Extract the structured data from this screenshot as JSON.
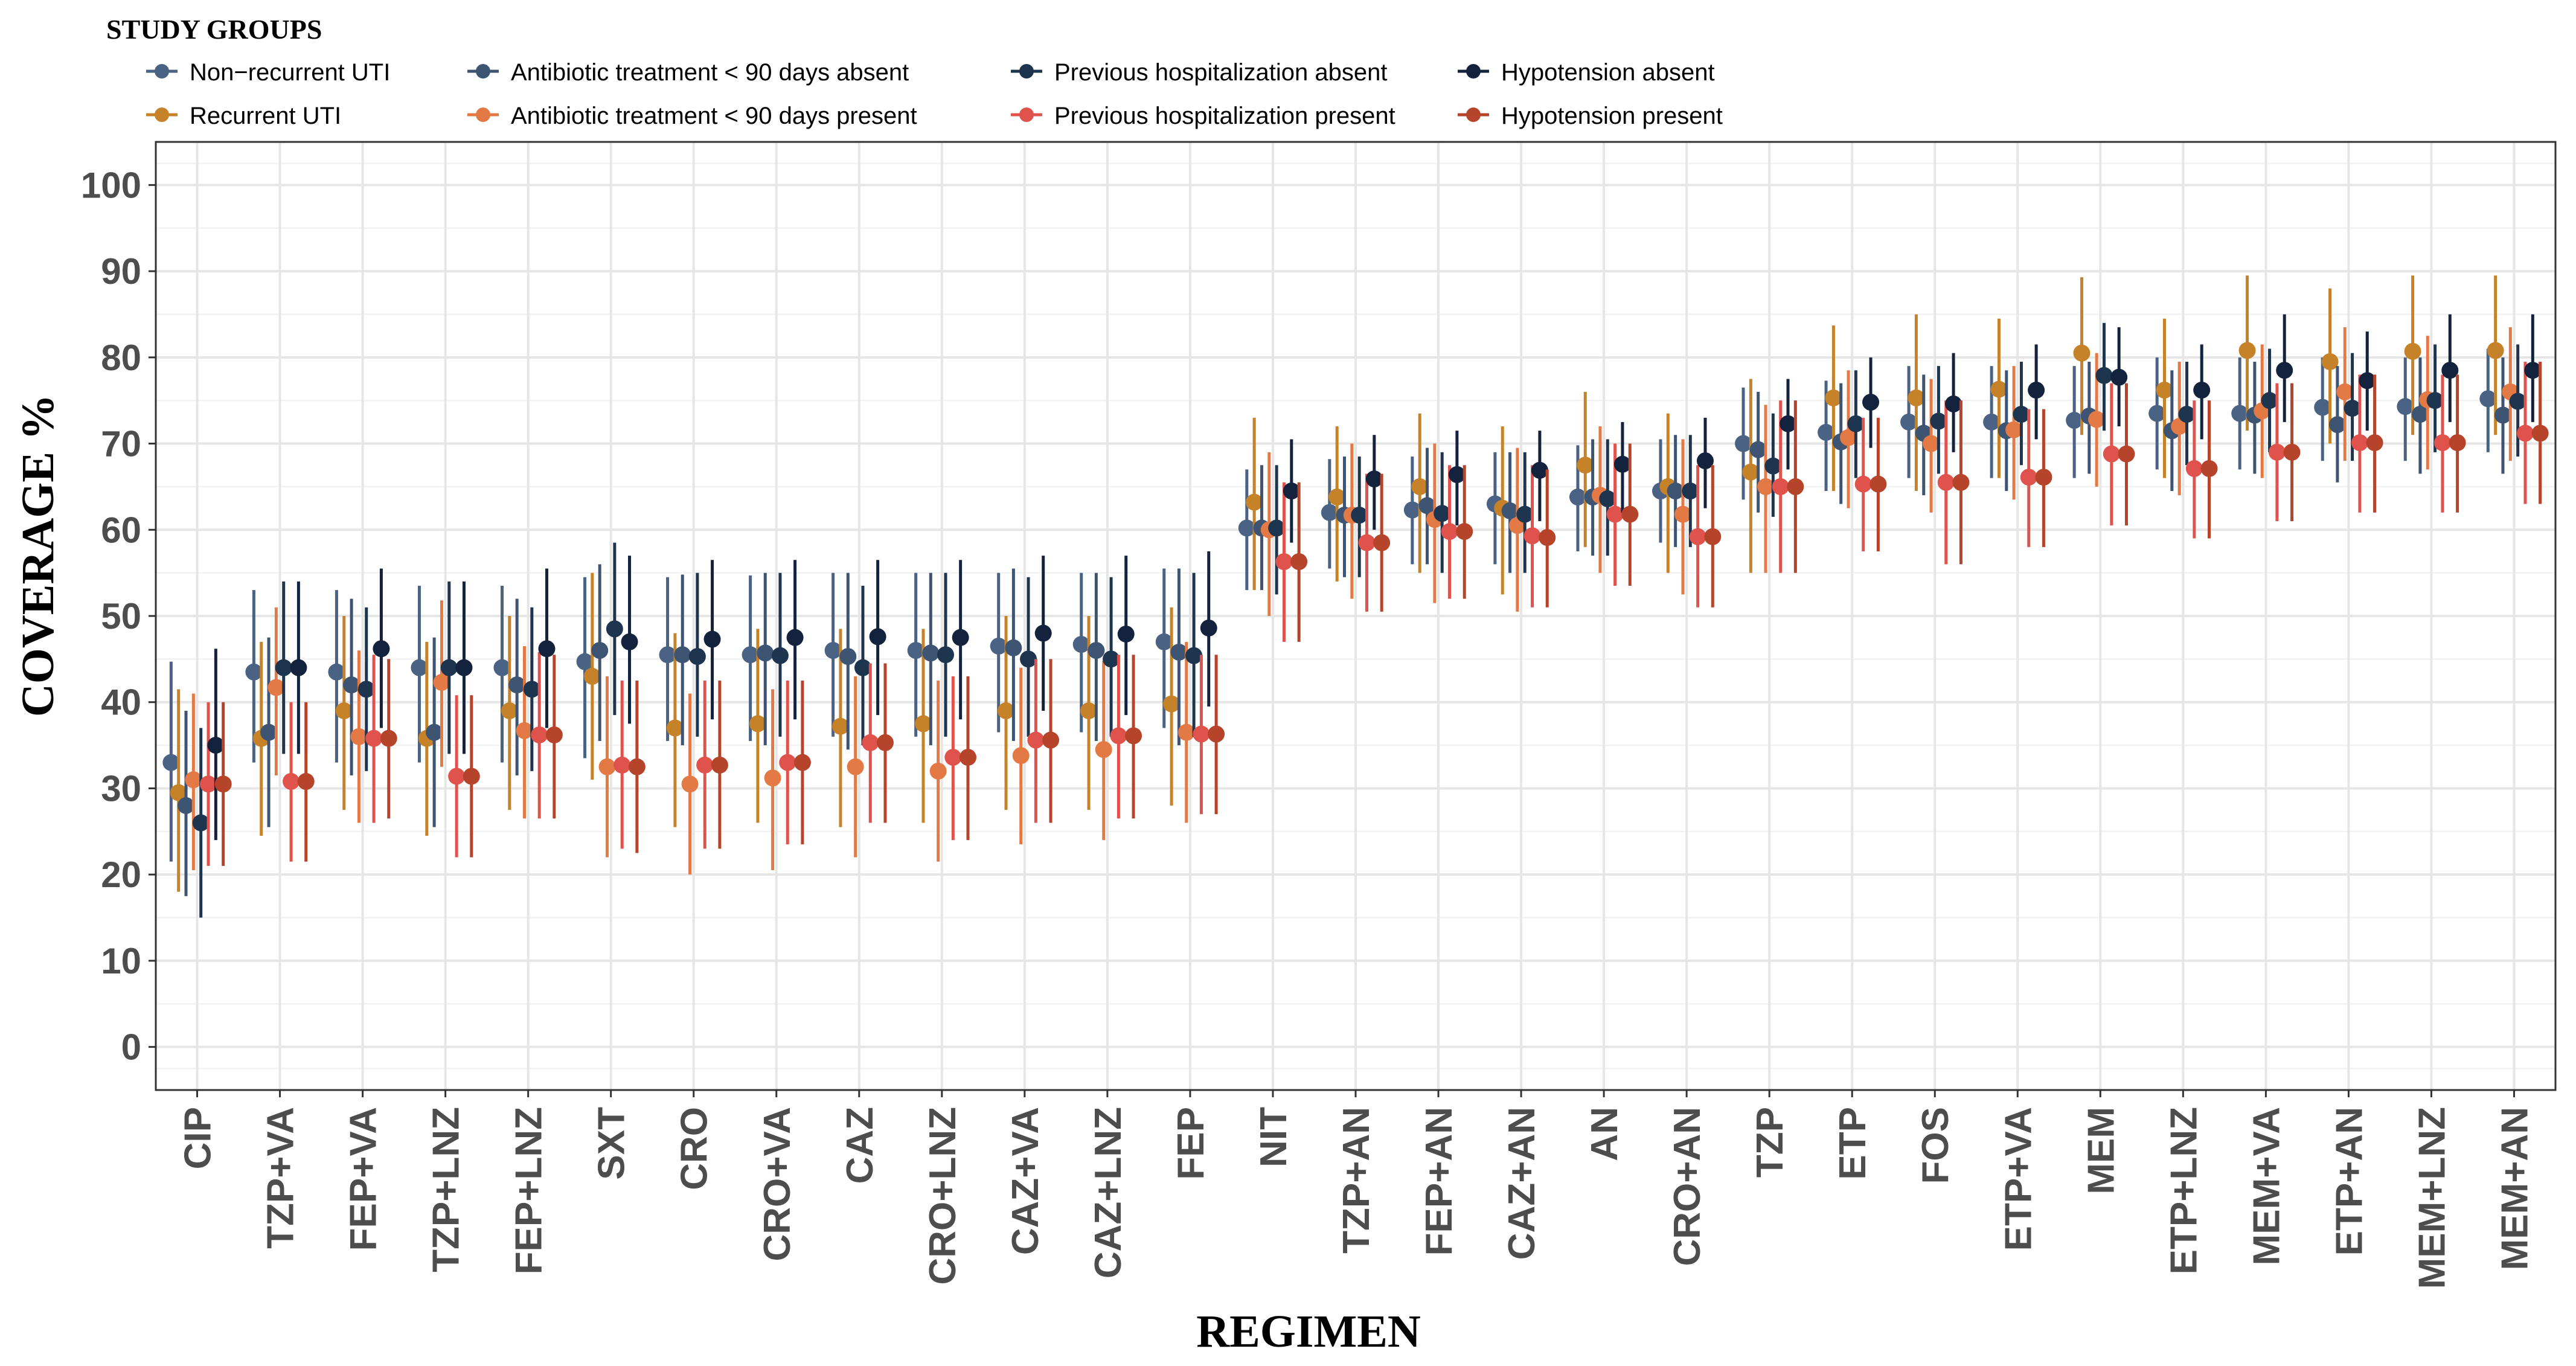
{
  "chart_data": {
    "type": "dot-errorbar",
    "xlabel": "REGIMEN",
    "ylabel": "COVERAGE %",
    "ylim": [
      -5,
      105
    ],
    "yticks": [
      0,
      10,
      20,
      30,
      40,
      50,
      60,
      70,
      80,
      90,
      100
    ],
    "grid": true,
    "legend": {
      "title": "STUDY GROUPS",
      "position": "top-left",
      "entries": [
        "Non−recurrent UTI",
        "Recurrent UTI",
        "Antibiotic treatment < 90 days absent",
        "Antibiotic treatment < 90 days present",
        "Previous hospitalization absent",
        "Previous hospitalization present",
        "Hypotension absent",
        "Hypotension present"
      ]
    },
    "categories": [
      "CIP",
      "TZP+VA",
      "FEP+VA",
      "TZP+LNZ",
      "FEP+LNZ",
      "SXT",
      "CRO",
      "CRO+VA",
      "CAZ",
      "CRO+LNZ",
      "CAZ+VA",
      "CAZ+LNZ",
      "FEP",
      "NIT",
      "TZP+AN",
      "FEP+AN",
      "CAZ+AN",
      "AN",
      "CRO+AN",
      "TZP",
      "ETP",
      "FOS",
      "ETP+VA",
      "MEM",
      "ETP+LNZ",
      "MEM+VA",
      "ETP+AN",
      "MEM+LNZ",
      "MEM+AN"
    ],
    "series": [
      {
        "name": "Non−recurrent UTI",
        "color": "#4a6283",
        "values": [
          33,
          43.5,
          43.5,
          44,
          44,
          44.7,
          45.5,
          45.5,
          46,
          46,
          46.5,
          46.7,
          47,
          60.2,
          62,
          62.3,
          63,
          63.8,
          64.5,
          70,
          71.3,
          72.5,
          72.5,
          72.7,
          73.5,
          73.5,
          74.2,
          74.3,
          75.2
        ],
        "lower": [
          21.5,
          33,
          33,
          33,
          33,
          33.5,
          35.5,
          35.5,
          36,
          36,
          36.5,
          36.5,
          37,
          53,
          55.5,
          56,
          56,
          57.5,
          58.5,
          63.5,
          64.5,
          66,
          66,
          66,
          67,
          67,
          68,
          68,
          69
        ],
        "upper": [
          44.7,
          53,
          53,
          53.5,
          53.5,
          54.5,
          54.5,
          54.7,
          55,
          55,
          55,
          55,
          55.5,
          67,
          68.2,
          68.5,
          69,
          69.8,
          70.5,
          76.5,
          77.3,
          79,
          79,
          79,
          80,
          80,
          80,
          80,
          81
        ]
      },
      {
        "name": "Recurrent UTI",
        "color": "#c58229",
        "values": [
          29.5,
          35.8,
          39,
          35.8,
          39,
          43,
          37,
          37.5,
          37.2,
          37.5,
          39,
          39,
          39.8,
          63.2,
          63.8,
          65,
          62.5,
          67.5,
          65,
          66.7,
          75.3,
          75.3,
          76.3,
          80.5,
          76.2,
          80.8,
          79.5,
          80.7,
          80.8
        ],
        "lower": [
          18,
          24.5,
          27.5,
          24.5,
          27.5,
          31,
          25.5,
          26,
          25.5,
          26,
          27.5,
          27.5,
          28,
          53,
          54,
          55,
          52.5,
          58,
          55,
          55,
          64.5,
          64.5,
          66,
          71,
          66,
          71.5,
          70,
          71,
          71
        ],
        "upper": [
          41.5,
          47,
          50,
          47,
          50,
          55,
          48,
          48.5,
          48.5,
          48.5,
          50,
          50,
          51,
          73,
          72,
          73.5,
          72,
          76,
          73.5,
          77.5,
          83.7,
          85,
          84.5,
          89.3,
          84.5,
          89.5,
          88,
          89.5,
          89.5
        ]
      },
      {
        "name": "Antibiotic treatment < 90 days absent",
        "color": "#3d5473",
        "values": [
          28,
          36.5,
          42,
          36.5,
          42,
          46,
          45.5,
          45.7,
          45.3,
          45.7,
          46.3,
          46,
          45.8,
          60.2,
          61.7,
          62.8,
          62.2,
          63.8,
          64.5,
          69.3,
          70.2,
          71.2,
          71.5,
          73.2,
          71.5,
          73.3,
          72.2,
          73.4,
          73.3
        ],
        "lower": [
          17.5,
          25.5,
          31.5,
          25.5,
          31.5,
          35.5,
          35,
          35,
          34.5,
          35,
          35.5,
          35.5,
          35,
          53,
          54.5,
          56,
          55,
          57,
          58,
          62,
          63,
          64,
          64.5,
          66.5,
          64.5,
          66.5,
          65.5,
          66.5,
          66.5
        ],
        "upper": [
          39,
          47.5,
          52,
          47.5,
          52,
          56,
          54.8,
          55,
          55,
          55,
          55.5,
          55,
          55.5,
          67.5,
          68.5,
          69.5,
          69,
          70.5,
          71,
          76,
          77,
          78,
          78.5,
          79.5,
          78.5,
          79.5,
          79,
          80,
          80
        ]
      },
      {
        "name": "Antibiotic treatment < 90 days present",
        "color": "#e37a45",
        "values": [
          31,
          41.7,
          36,
          42.3,
          36.7,
          32.5,
          30.5,
          31.2,
          32.5,
          32,
          33.8,
          34.5,
          36.5,
          60,
          61.7,
          61.2,
          60.5,
          64,
          61.8,
          65,
          70.7,
          70,
          71.6,
          72.8,
          72,
          73.8,
          76,
          75.1,
          76
        ],
        "lower": [
          20.5,
          31.5,
          26,
          32.5,
          26.5,
          22,
          20,
          20.5,
          22,
          21.5,
          23.5,
          24,
          26,
          50,
          52,
          51.5,
          50.5,
          55,
          52.5,
          55,
          62.5,
          62,
          63.5,
          65,
          64,
          66,
          68,
          67,
          68
        ],
        "upper": [
          41,
          51,
          46,
          51.8,
          46.5,
          43,
          41,
          41.5,
          43,
          42.5,
          44,
          44.8,
          47,
          69,
          70,
          70,
          69.5,
          72,
          70.5,
          74.5,
          78.5,
          77.5,
          79,
          80.5,
          79.5,
          81.5,
          83.5,
          82.5,
          83.5
        ]
      },
      {
        "name": "Previous hospitalization absent",
        "color": "#1e3550",
        "values": [
          26,
          44,
          41.5,
          44,
          41.5,
          48.5,
          45.3,
          45.4,
          44,
          45.5,
          45,
          45,
          45.4,
          60.2,
          61.7,
          61.9,
          61.8,
          63.6,
          64.5,
          67.4,
          72.3,
          72.6,
          73.4,
          77.9,
          73.4,
          75,
          74.1,
          75,
          74.9
        ],
        "lower": [
          15,
          34,
          32,
          34,
          32,
          38.5,
          36,
          36,
          35,
          36,
          36,
          36,
          36,
          52.5,
          54.5,
          55,
          55,
          57,
          58,
          61.5,
          66,
          66.5,
          67.5,
          71.5,
          67.5,
          69,
          68,
          69,
          68.5
        ],
        "upper": [
          37,
          54,
          51,
          54,
          51,
          58.5,
          55,
          55,
          53.5,
          55,
          54.5,
          54.5,
          55,
          67.5,
          68.5,
          69,
          69,
          70.5,
          71,
          73.5,
          78.5,
          79,
          79.5,
          84,
          79.5,
          81,
          80.5,
          81.5,
          81.5
        ]
      },
      {
        "name": "Previous hospitalization present",
        "color": "#e0534c",
        "values": [
          30.5,
          30.8,
          35.8,
          31.4,
          36.2,
          32.7,
          32.7,
          33,
          35.3,
          33.6,
          35.6,
          36.1,
          36.3,
          56.3,
          58.5,
          59.8,
          59.3,
          61.8,
          59.2,
          65,
          65.3,
          65.5,
          66.1,
          68.8,
          67.1,
          69,
          70.1,
          70.1,
          71.2
        ],
        "lower": [
          21,
          21.5,
          26,
          22,
          26.5,
          23,
          23,
          23.5,
          26,
          24,
          26,
          26.5,
          27,
          47,
          50.5,
          52,
          51,
          53.5,
          51,
          55,
          57.5,
          56,
          58,
          60.5,
          59,
          61,
          62,
          62,
          63
        ],
        "upper": [
          40,
          40,
          45.5,
          40.8,
          45.8,
          42.5,
          42.5,
          42.5,
          44.5,
          43,
          45,
          45.5,
          45.5,
          65.5,
          66.5,
          67.5,
          67.5,
          70,
          67.5,
          75,
          73,
          75,
          74,
          77,
          75,
          77,
          78,
          78,
          79.5
        ]
      },
      {
        "name": "Hypotension absent",
        "color": "#14233d",
        "values": [
          35,
          44,
          46.2,
          44,
          46.2,
          47,
          47.3,
          47.5,
          47.6,
          47.5,
          48,
          47.9,
          48.6,
          64.5,
          65.9,
          66.4,
          66.9,
          67.6,
          68,
          72.3,
          74.8,
          74.6,
          76.2,
          77.7,
          76.2,
          78.5,
          77.3,
          78.5,
          78.5
        ],
        "lower": [
          24,
          34,
          37,
          34,
          37,
          37.5,
          38,
          38,
          38.5,
          38,
          39,
          38.5,
          39.5,
          58.5,
          60,
          60.5,
          61,
          62,
          62.5,
          67,
          69.5,
          69,
          70.5,
          72,
          70.5,
          72.5,
          71.5,
          72.5,
          72.5
        ],
        "upper": [
          46.2,
          54,
          55.5,
          54,
          55.5,
          57,
          56.5,
          56.5,
          56.5,
          56.5,
          57,
          57,
          57.5,
          70.5,
          71,
          71.5,
          71.5,
          72.5,
          73,
          77.5,
          80,
          80.5,
          81.5,
          83.5,
          81.5,
          85,
          83,
          85,
          85
        ]
      },
      {
        "name": "Hypotension present",
        "color": "#b5442a",
        "values": [
          30.5,
          30.8,
          35.8,
          31.4,
          36.2,
          32.5,
          32.7,
          33,
          35.3,
          33.6,
          35.6,
          36.1,
          36.3,
          56.3,
          58.5,
          59.8,
          59.1,
          61.8,
          59.2,
          65,
          65.3,
          65.5,
          66.1,
          68.8,
          67.1,
          69,
          70.1,
          70.1,
          71.2
        ],
        "lower": [
          21,
          21.5,
          26.5,
          22,
          26.5,
          22.5,
          23,
          23.5,
          26,
          24,
          26,
          26.5,
          27,
          47,
          50.5,
          52,
          51,
          53.5,
          51,
          55,
          57.5,
          56,
          58,
          60.5,
          59,
          61,
          62,
          62,
          63
        ],
        "upper": [
          40,
          40,
          45,
          40.8,
          45.5,
          42.5,
          42.5,
          42.5,
          44.5,
          43,
          45,
          45.5,
          45.5,
          65.5,
          66.5,
          67.5,
          67,
          70,
          67.5,
          75,
          73,
          75,
          74,
          77,
          75,
          77,
          78,
          78,
          79.5
        ]
      }
    ]
  }
}
